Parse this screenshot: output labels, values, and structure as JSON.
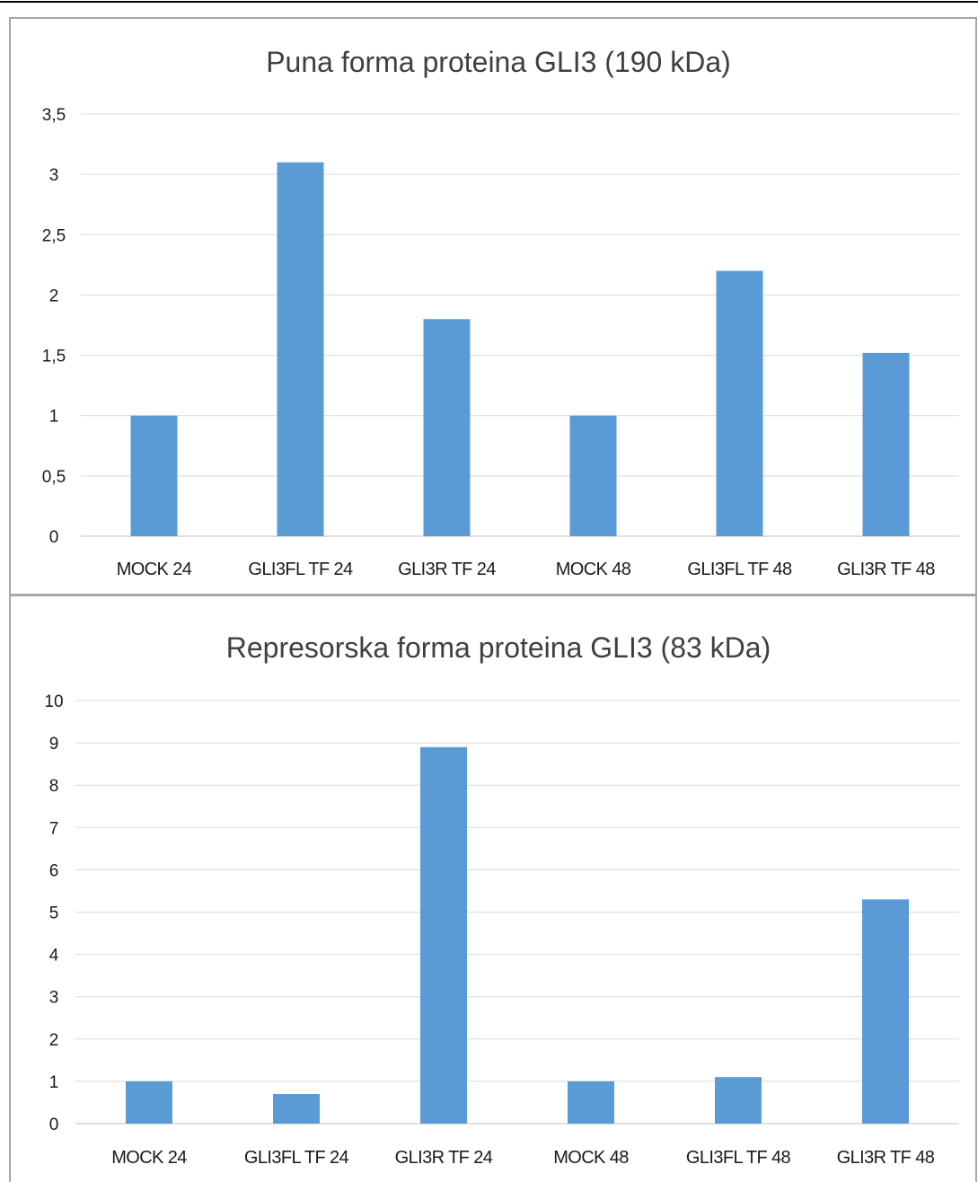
{
  "chart_data": [
    {
      "type": "bar",
      "title": "Puna forma proteina GLI3 (190 kDa)",
      "categories": [
        "MOCK 24",
        "GLI3FL TF 24",
        "GLI3R TF 24",
        "MOCK 48",
        "GLI3FL TF 48",
        "GLI3R TF 48"
      ],
      "values": [
        1.0,
        3.1,
        1.8,
        1.0,
        2.2,
        1.52
      ],
      "yticks": [
        "0",
        "0,5",
        "1",
        "1,5",
        "2",
        "2,5",
        "3",
        "3,5"
      ],
      "ylim": [
        0,
        3.5
      ],
      "grid": true,
      "bar_color": "#5b9bd5"
    },
    {
      "type": "bar",
      "title": "Represorska forma proteina GLI3 (83 kDa)",
      "categories": [
        "MOCK 24",
        "GLI3FL TF 24",
        "GLI3R TF 24",
        "MOCK 48",
        "GLI3FL TF 48",
        "GLI3R TF 48"
      ],
      "values": [
        1.0,
        0.7,
        8.9,
        1.0,
        1.1,
        5.3
      ],
      "yticks": [
        "0",
        "1",
        "2",
        "3",
        "4",
        "5",
        "6",
        "7",
        "8",
        "9",
        "10"
      ],
      "ylim": [
        0,
        10
      ],
      "grid": true,
      "bar_color": "#5b9bd5"
    }
  ]
}
